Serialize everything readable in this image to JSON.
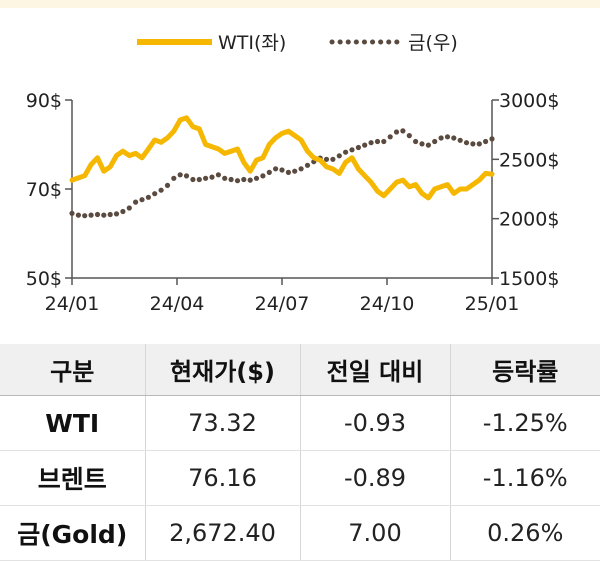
{
  "chart_data": {
    "type": "line",
    "legend": {
      "position": "top-center",
      "items": [
        {
          "name": "WTI(좌)",
          "color": "#F5B700",
          "style": "solid"
        },
        {
          "name": "금(우)",
          "color": "#5A4A3F",
          "style": "dotted"
        }
      ]
    },
    "x_ticks": [
      "24/01",
      "24/04",
      "24/07",
      "24/10",
      "25/01"
    ],
    "y_left": {
      "ticks": [
        "90$",
        "70$",
        "50$"
      ],
      "range": [
        50,
        90
      ]
    },
    "y_right": {
      "ticks": [
        "3000$",
        "2500$",
        "2000$",
        "1500$"
      ],
      "range": [
        1500,
        3000
      ]
    },
    "grid": false,
    "series": [
      {
        "name": "WTI(좌)",
        "axis": "left",
        "color": "#F5B700",
        "values": [
          72.0,
          72.5,
          73.0,
          75.5,
          77.0,
          74.0,
          75.0,
          77.5,
          78.5,
          77.5,
          78.0,
          77.0,
          79.0,
          81.0,
          80.5,
          81.5,
          83.0,
          85.5,
          86.0,
          84.0,
          83.5,
          80.0,
          79.5,
          79.0,
          78.0,
          78.5,
          79.0,
          76.0,
          74.0,
          76.5,
          77.0,
          80.0,
          81.5,
          82.5,
          83.0,
          82.0,
          81.0,
          78.5,
          77.0,
          76.5,
          75.0,
          74.5,
          73.5,
          76.0,
          77.0,
          74.5,
          73.0,
          71.5,
          69.5,
          68.5,
          70.0,
          71.5,
          72.0,
          70.5,
          71.0,
          69.0,
          68.0,
          70.0,
          70.5,
          71.0,
          69.0,
          70.0,
          70.0,
          71.0,
          72.0,
          73.5,
          73.32
        ]
      },
      {
        "name": "금(우)",
        "axis": "right",
        "color": "#5A4A3F",
        "values": [
          2045,
          2030,
          2025,
          2030,
          2035,
          2030,
          2035,
          2040,
          2060,
          2090,
          2140,
          2160,
          2180,
          2210,
          2240,
          2280,
          2340,
          2370,
          2360,
          2330,
          2330,
          2340,
          2350,
          2370,
          2340,
          2330,
          2320,
          2330,
          2325,
          2340,
          2360,
          2390,
          2420,
          2410,
          2390,
          2400,
          2420,
          2450,
          2480,
          2510,
          2500,
          2500,
          2530,
          2560,
          2580,
          2600,
          2620,
          2640,
          2650,
          2650,
          2690,
          2730,
          2740,
          2700,
          2650,
          2630,
          2620,
          2650,
          2680,
          2690,
          2680,
          2660,
          2640,
          2630,
          2630,
          2650,
          2672.4
        ]
      }
    ]
  },
  "table": {
    "headers": [
      "구분",
      "현재가($)",
      "전일 대비",
      "등락률"
    ],
    "rows": [
      [
        "WTI",
        "73.32",
        "-0.93",
        "-1.25%"
      ],
      [
        "브렌트",
        "76.16",
        "-0.89",
        "-1.16%"
      ],
      [
        "금(Gold)",
        "2,672.40",
        "7.00",
        "0.26%"
      ]
    ]
  }
}
